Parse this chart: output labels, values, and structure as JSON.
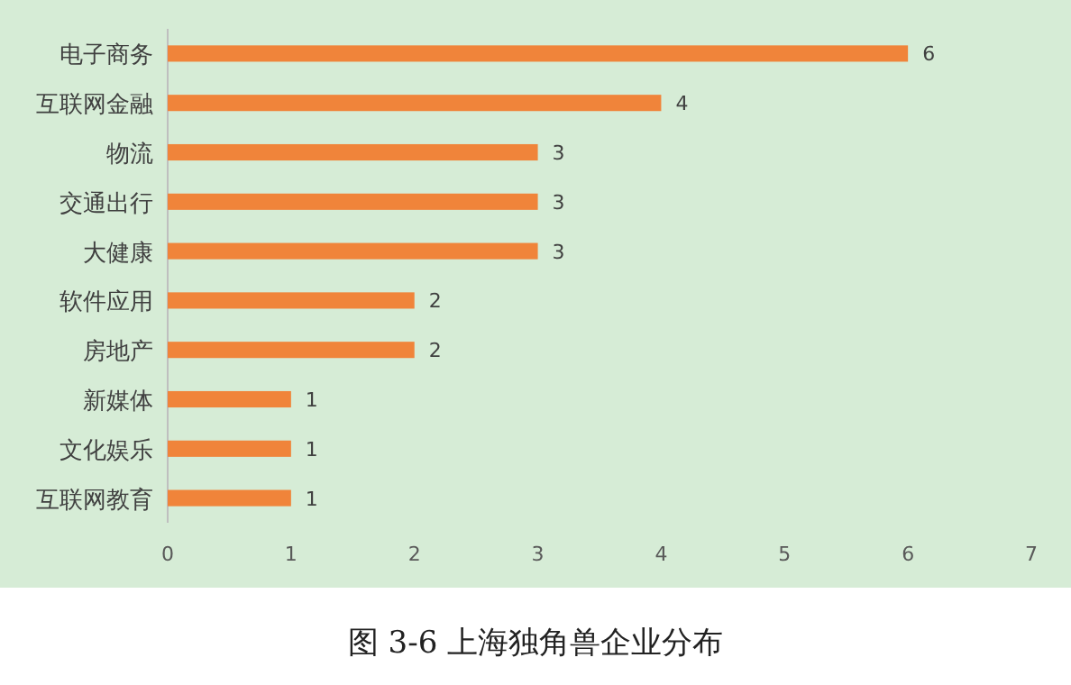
{
  "chart_data": {
    "type": "bar",
    "orientation": "horizontal",
    "title": "图 3-6 上海独角兽企业分布",
    "categories": [
      "电子商务",
      "互联网金融",
      "物流",
      "交通出行",
      "大健康",
      "软件应用",
      "房地产",
      "新媒体",
      "文化娱乐",
      "互联网教育"
    ],
    "values": [
      6,
      4,
      3,
      3,
      3,
      2,
      2,
      1,
      1,
      1
    ],
    "color": "#f0843a",
    "xlim": [
      0,
      7
    ],
    "xticks": [
      0,
      1,
      2,
      3,
      4,
      5,
      6,
      7
    ],
    "data_labels": true
  }
}
